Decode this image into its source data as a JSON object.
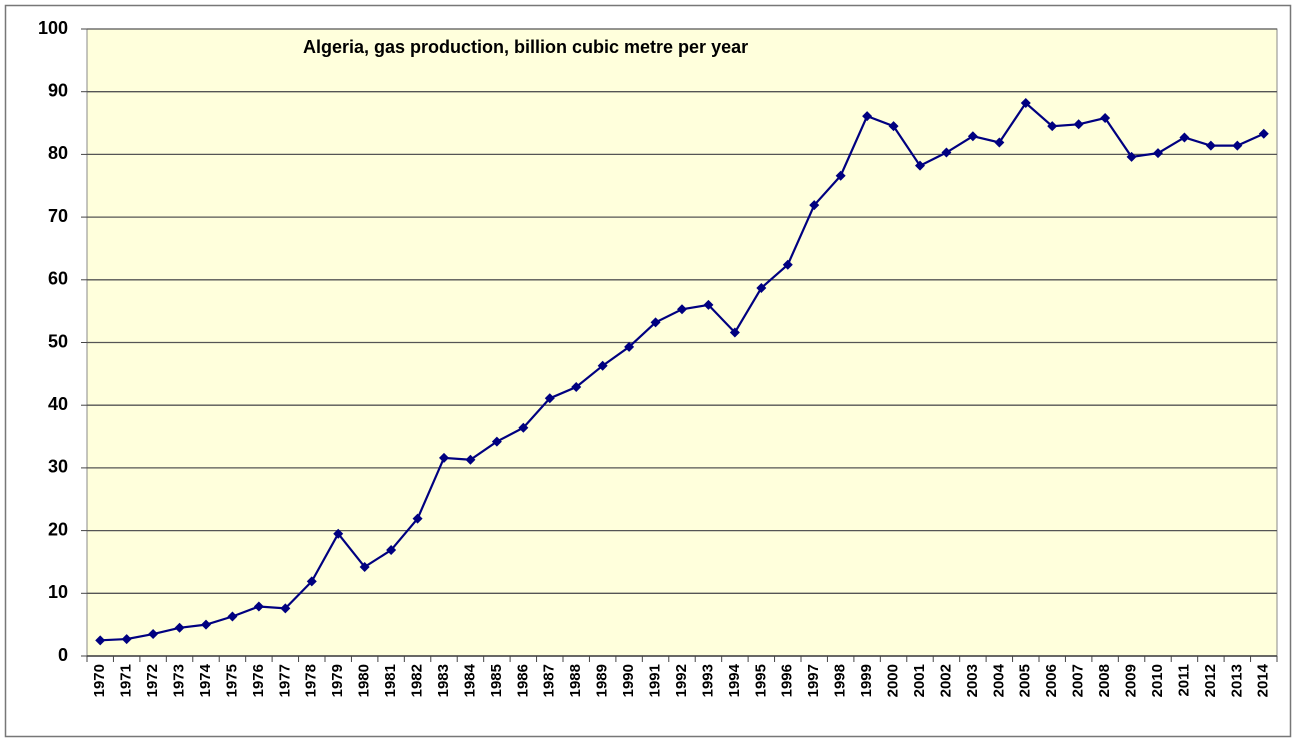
{
  "chart_data": {
    "type": "line",
    "title": "Algeria, gas production, billion cubic metre per year",
    "categories": [
      "1970",
      "1971",
      "1972",
      "1973",
      "1974",
      "1975",
      "1976",
      "1977",
      "1978",
      "1979",
      "1980",
      "1981",
      "1982",
      "1983",
      "1984",
      "1985",
      "1986",
      "1987",
      "1988",
      "1989",
      "1990",
      "1991",
      "1992",
      "1993",
      "1994",
      "1995",
      "1996",
      "1997",
      "1998",
      "1999",
      "2000",
      "2001",
      "2002",
      "2003",
      "2004",
      "2005",
      "2006",
      "2007",
      "2008",
      "2009",
      "2010",
      "2011",
      "2012",
      "2013",
      "2014"
    ],
    "values": [
      2.5,
      2.7,
      3.5,
      4.5,
      5.0,
      6.3,
      7.9,
      7.6,
      11.9,
      19.5,
      14.2,
      16.9,
      21.9,
      31.6,
      31.3,
      34.2,
      36.4,
      41.1,
      42.9,
      46.3,
      49.3,
      53.2,
      55.3,
      56.0,
      51.6,
      58.7,
      62.4,
      71.9,
      76.6,
      86.1,
      84.5,
      78.2,
      80.3,
      82.9,
      81.9,
      88.2,
      84.5,
      84.8,
      85.8,
      79.6,
      80.2,
      82.7,
      81.4,
      81.4,
      83.3
    ],
    "color": "#000080",
    "ylim": [
      0,
      100
    ],
    "yticks": [
      0,
      10,
      20,
      30,
      40,
      50,
      60,
      70,
      80,
      90,
      100
    ],
    "grid": true
  }
}
